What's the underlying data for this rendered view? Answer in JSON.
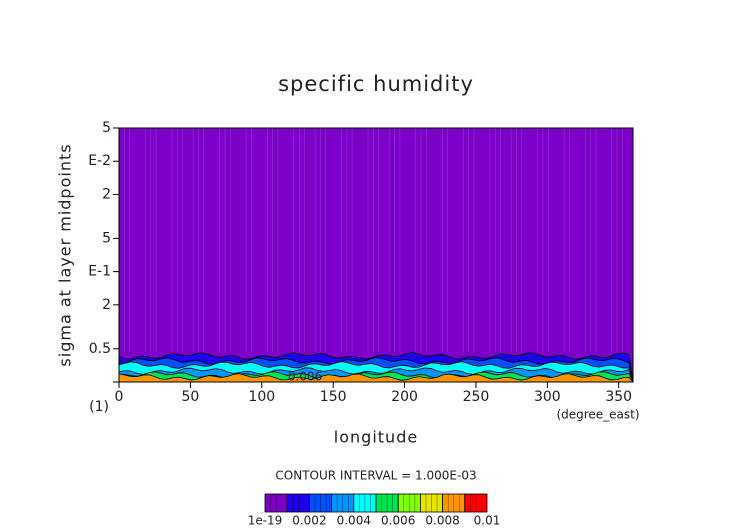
{
  "chart_data": {
    "type": "contour",
    "title": "specific humidity",
    "x_label": "longitude",
    "y_label": "sigma at layer midpoints",
    "x_unit": "(degree_east)",
    "xlim": [
      0,
      360
    ],
    "xticks": [
      0,
      50,
      100,
      150,
      200,
      250,
      300,
      350
    ],
    "ylim": [
      1,
      0.005
    ],
    "log_y": true,
    "yticks": [
      {
        "value": 1,
        "label": "(1)"
      },
      0.5,
      {
        "value": 0.2,
        "label": "2"
      },
      {
        "value": 0.1,
        "label": "E-1"
      },
      {
        "value": 0.05,
        "label": "5"
      },
      {
        "value": 0.02,
        "label": "2"
      },
      {
        "value": 0.01,
        "label": "E-2"
      },
      {
        "value": 0.005,
        "label": "5"
      }
    ],
    "contour_interval": "CONTOUR INTERVAL = 1.000E-03",
    "contour_labels": [
      0.006
    ],
    "levels": [
      1e-19,
      0.001,
      0.002,
      0.003,
      0.004,
      0.005,
      0.006,
      0.007,
      0.008,
      0.009,
      0.01
    ],
    "colors": [
      "#7d00c8",
      "#1e00f0",
      "#0050ff",
      "#0096ff",
      "#00ffff",
      "#00e650",
      "#82ff00",
      "#e6e600",
      "#ff9600",
      "#ff0000",
      "#ff9ba0"
    ],
    "colorbar_ticks": [
      1e-19,
      0.002,
      0.004,
      0.006,
      0.008,
      0.01
    ]
  }
}
